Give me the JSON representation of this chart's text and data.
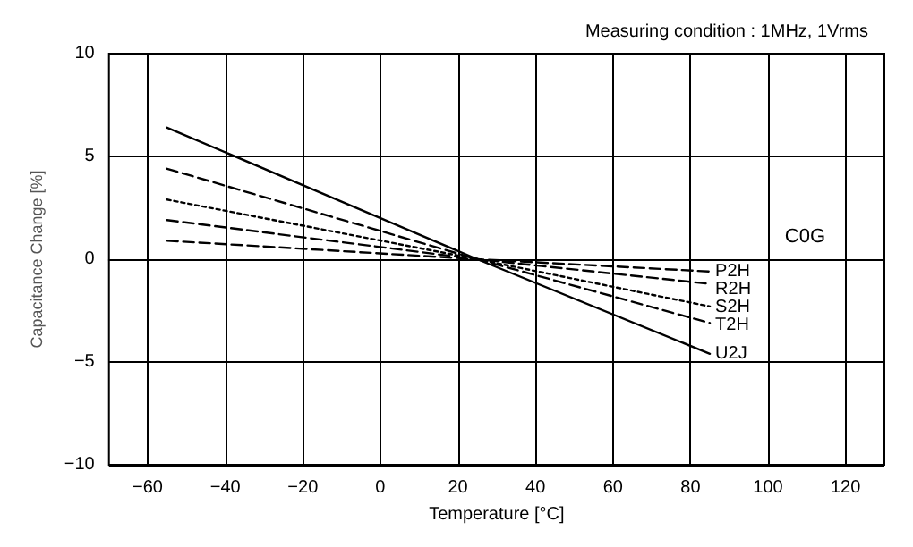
{
  "chart_data": {
    "type": "line",
    "subtitle": "Measuring condition : 1MHz, 1Vrms",
    "xlabel": "Temperature [°C]",
    "ylabel": "Capacitance Change [%]",
    "x": [
      -55,
      25,
      85
    ],
    "series": [
      {
        "name": "P2H",
        "color": "#000000",
        "values": [
          0.9,
          0,
          -0.6
        ],
        "line_style": "dashed"
      },
      {
        "name": "R2H",
        "color": "#000000",
        "values": [
          1.9,
          0,
          -1.2
        ],
        "line_style": "dashed"
      },
      {
        "name": "S2H",
        "color": "#000000",
        "values": [
          2.9,
          0,
          -2.3
        ],
        "line_style": "dotted"
      },
      {
        "name": "T2H",
        "color": "#000000",
        "values": [
          4.4,
          0,
          -3.1
        ],
        "line_style": "dashed"
      },
      {
        "name": "U2J",
        "color": "#000000",
        "values": [
          6.4,
          0,
          -4.6
        ],
        "line_style": "solid"
      }
    ],
    "annotations": [
      "C0G"
    ],
    "xlim": [
      -70,
      130
    ],
    "xticks": [
      -60,
      -40,
      -20,
      0,
      20,
      40,
      60,
      80,
      100,
      120
    ],
    "ylim": [
      -10,
      10
    ],
    "yticks": [
      -10,
      -5,
      0,
      5,
      10
    ],
    "grid": true,
    "marker": "none"
  }
}
